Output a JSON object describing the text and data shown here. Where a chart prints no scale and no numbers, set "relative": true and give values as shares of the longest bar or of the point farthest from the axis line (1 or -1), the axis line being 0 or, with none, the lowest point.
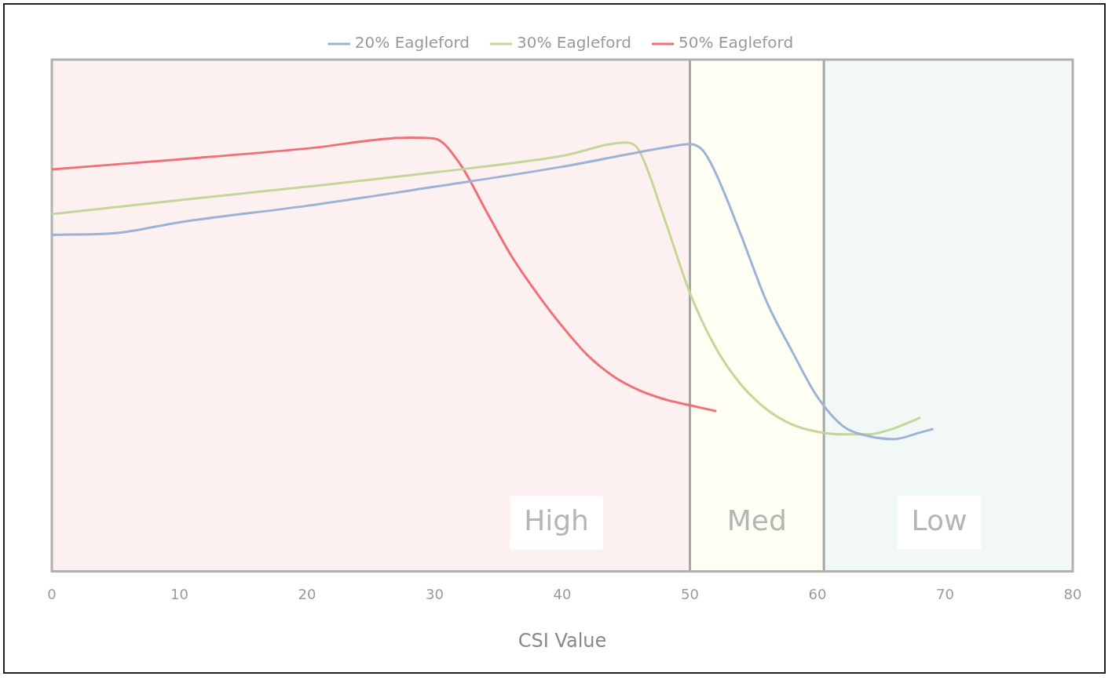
{
  "chart_data": {
    "type": "line",
    "xlabel": "CSI Value",
    "relative": true,
    "xlim": [
      0,
      80
    ],
    "xticks": [
      0,
      10,
      20,
      30,
      40,
      50,
      60,
      70,
      80
    ],
    "tick_labels": "x",
    "legend": "top",
    "marker": "none",
    "line_style": "solid",
    "bands": [
      {
        "axis": "x",
        "from": 0,
        "to": 50,
        "label": "High",
        "color": "#fdf0f0"
      },
      {
        "axis": "x",
        "from": 50,
        "to": 60.5,
        "label": "Med",
        "color": "#fffef3"
      },
      {
        "axis": "x",
        "from": 60.5,
        "to": 80,
        "label": "Low",
        "color": "#f2f8f6"
      }
    ],
    "ref_lines": [
      {
        "axis": "x",
        "value": 50,
        "color": "#a6a6a6"
      },
      {
        "axis": "x",
        "value": 60.5,
        "color": "#a6a6a6"
      }
    ],
    "series": [
      {
        "name": "20% Eagleford",
        "color": "#9db3d6",
        "x": [
          0,
          5,
          10,
          20,
          30,
          40,
          48,
          50,
          51,
          52,
          54,
          56,
          58,
          60,
          62,
          64,
          66,
          68,
          69
        ],
        "values": [
          0.776,
          0.78,
          0.805,
          0.843,
          0.887,
          0.933,
          0.977,
          0.985,
          0.971,
          0.92,
          0.776,
          0.623,
          0.508,
          0.402,
          0.335,
          0.312,
          0.305,
          0.32,
          0.328
        ]
      },
      {
        "name": "30% Eagleford",
        "color": "#c5d69b",
        "x": [
          0,
          10,
          20,
          30,
          40,
          45,
          46,
          48,
          50,
          52,
          54,
          56,
          58,
          60,
          62,
          64,
          66,
          68
        ],
        "values": [
          0.824,
          0.856,
          0.887,
          0.92,
          0.958,
          0.989,
          0.971,
          0.814,
          0.642,
          0.517,
          0.431,
          0.374,
          0.339,
          0.322,
          0.316,
          0.316,
          0.33,
          0.354
        ]
      },
      {
        "name": "50% Eagleford",
        "color": "#f0707a",
        "x": [
          0,
          10,
          20,
          28,
          30,
          32,
          34,
          36,
          38,
          40,
          42,
          44,
          46,
          48,
          50,
          52
        ],
        "values": [
          0.927,
          0.95,
          0.975,
          1,
          0.998,
          0.939,
          0.833,
          0.728,
          0.642,
          0.565,
          0.498,
          0.45,
          0.418,
          0.397,
          0.383,
          0.37
        ]
      }
    ]
  }
}
